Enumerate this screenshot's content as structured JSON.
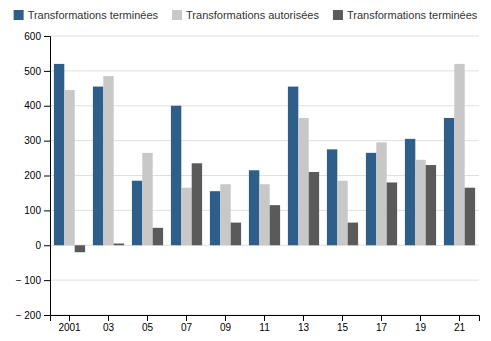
{
  "chart_data": {
    "type": "bar",
    "categories": [
      "2001",
      "03",
      "05",
      "07",
      "09",
      "11",
      "13",
      "15",
      "17",
      "19",
      "21"
    ],
    "series": [
      {
        "name": "Transformations terminées",
        "color": "#2e5f8a",
        "values": [
          520,
          455,
          185,
          400,
          155,
          215,
          455,
          275,
          265,
          305,
          365
        ]
      },
      {
        "name": "Transformations autorisées",
        "color": "#c8c8c8",
        "values": [
          445,
          485,
          265,
          165,
          175,
          175,
          365,
          185,
          295,
          245,
          520
        ]
      },
      {
        "name": "Transformations terminées",
        "color": "#5a5a5a",
        "values": [
          -20,
          5,
          50,
          235,
          65,
          115,
          210,
          65,
          180,
          230,
          165
        ]
      }
    ],
    "ylim": [
      -200,
      600
    ],
    "yticks": [
      {
        "value": -200,
        "label": "− 200"
      },
      {
        "value": -100,
        "label": "− 100"
      },
      0,
      100,
      200,
      300,
      400,
      500,
      600
    ],
    "grid": true,
    "legend": "top"
  }
}
